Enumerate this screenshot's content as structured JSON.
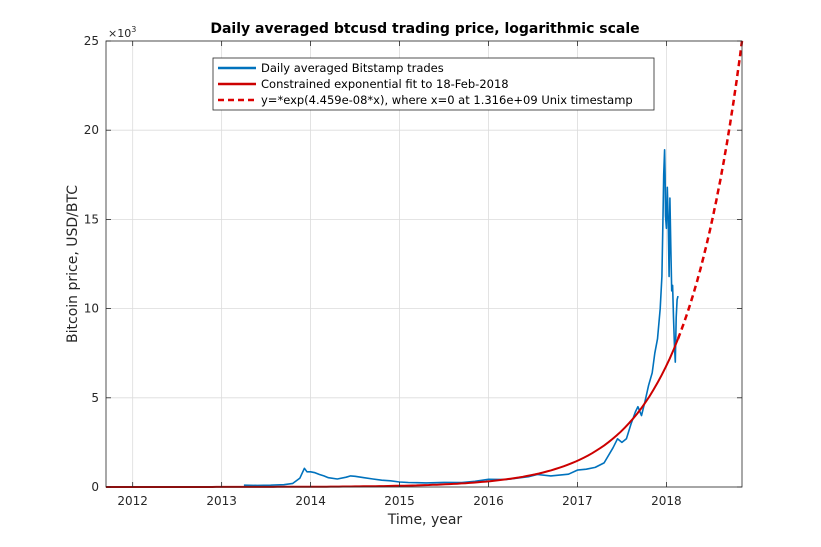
{
  "chart_data": {
    "type": "line",
    "title": "Daily averaged btcusd trading price, logarithmic scale",
    "xlabel": "Time, year",
    "ylabel": "Bitcoin price, USD/BTC",
    "y_exponent_label": "×10",
    "y_exponent_power": "3",
    "xlim": [
      2011.7,
      2018.85
    ],
    "ylim": [
      0,
      25
    ],
    "y_unit_multiplier": 1000,
    "x_ticks": [
      "2012",
      "2013",
      "2014",
      "2015",
      "2016",
      "2017",
      "2018"
    ],
    "y_ticks": [
      "0",
      "5",
      "10",
      "15",
      "20",
      "25"
    ],
    "grid": true,
    "legend_position": "top-center",
    "colors": {
      "trades": "#0072BD",
      "fit": "#CC0000",
      "extrapolation": "#DD0000",
      "grid": "#dcdcdc",
      "axis": "#262626"
    },
    "series": [
      {
        "name": "Daily averaged Bitstamp trades",
        "style": "solid",
        "color": "#0072BD",
        "x": [
          2013.25,
          2013.4,
          2013.55,
          2013.7,
          2013.8,
          2013.88,
          2013.93,
          2013.96,
          2014.0,
          2014.05,
          2014.1,
          2014.15,
          2014.2,
          2014.3,
          2014.4,
          2014.45,
          2014.5,
          2014.6,
          2014.7,
          2014.8,
          2014.9,
          2015.0,
          2015.1,
          2015.2,
          2015.3,
          2015.5,
          2015.7,
          2015.85,
          2016.0,
          2016.2,
          2016.45,
          2016.55,
          2016.7,
          2016.9,
          2017.0,
          2017.1,
          2017.2,
          2017.3,
          2017.4,
          2017.45,
          2017.5,
          2017.55,
          2017.6,
          2017.65,
          2017.68,
          2017.72,
          2017.76,
          2017.8,
          2017.84,
          2017.87,
          2017.9,
          2017.93,
          2017.95,
          2017.96,
          2017.97,
          2017.98,
          2017.985,
          2017.99,
          2018.0,
          2018.01,
          2018.02,
          2018.03,
          2018.04,
          2018.05,
          2018.06,
          2018.07,
          2018.08,
          2018.09,
          2018.1,
          2018.11,
          2018.12,
          2018.13
        ],
        "y": [
          0.1,
          0.09,
          0.1,
          0.13,
          0.2,
          0.5,
          1.05,
          0.85,
          0.85,
          0.8,
          0.7,
          0.62,
          0.52,
          0.45,
          0.55,
          0.62,
          0.6,
          0.52,
          0.45,
          0.38,
          0.35,
          0.28,
          0.25,
          0.24,
          0.23,
          0.26,
          0.25,
          0.32,
          0.43,
          0.42,
          0.58,
          0.7,
          0.62,
          0.72,
          0.95,
          1.0,
          1.1,
          1.35,
          2.2,
          2.7,
          2.5,
          2.7,
          3.5,
          4.2,
          4.5,
          4.0,
          4.8,
          5.7,
          6.4,
          7.5,
          8.3,
          10.0,
          11.8,
          14.5,
          17.5,
          18.9,
          17.5,
          15.2,
          14.5,
          16.8,
          15.0,
          11.8,
          16.2,
          13.5,
          11.0,
          11.3,
          9.5,
          8.0,
          7.0,
          9.5,
          10.5,
          10.7
        ]
      },
      {
        "name": "Constrained exponential fit to 18-Feb-2018",
        "style": "solid",
        "color": "#CC0000",
        "x_start": 2011.7,
        "x_end": 2018.13
      },
      {
        "name": "y=*exp(4.459e-08*x), where x=0 at 1.316e+09 Unix timestamp",
        "style": "dashed",
        "color": "#DD0000",
        "x_start": 2018.13,
        "x_end": 2018.85
      }
    ],
    "fit_model": {
      "x_end": 2018.13,
      "y_end": 8.3,
      "x_top": 2018.85,
      "y_top": 25.0
    }
  }
}
